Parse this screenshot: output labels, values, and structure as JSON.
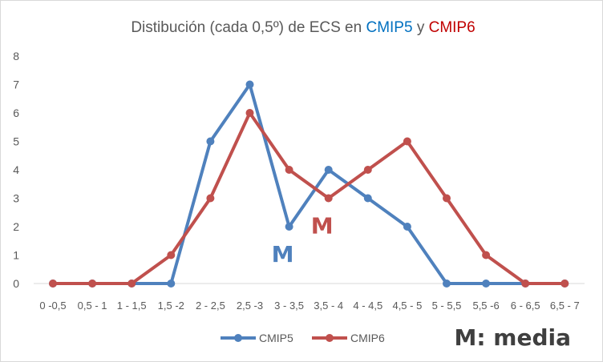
{
  "chart_data": {
    "type": "line",
    "title": {
      "prefix": "Distibución (cada 0,5º) de ECS en ",
      "s1": "CMIP5",
      "mid": " y ",
      "s2": "CMIP6"
    },
    "categories": [
      "0 -0,5",
      "0,5 - 1",
      "1 - 1,5",
      "1,5 -2",
      "2 - 2,5",
      "2,5 -3",
      "3 - 3,5",
      "3,5 - 4",
      "4 - 4,5",
      "4,5 - 5",
      "5 - 5,5",
      "5,5 -6",
      "6 - 6,5",
      "6,5 - 7"
    ],
    "series": [
      {
        "name": "CMIP5",
        "color": "#4f81bd",
        "values": [
          0,
          0,
          0,
          0,
          5,
          7,
          2,
          4,
          3,
          2,
          0,
          0,
          0,
          0
        ]
      },
      {
        "name": "CMIP6",
        "color": "#c0504d",
        "values": [
          0,
          0,
          0,
          1,
          3,
          6,
          4,
          3,
          4,
          5,
          3,
          1,
          0,
          0
        ]
      }
    ],
    "ylim": [
      0,
      8
    ],
    "yticks": [
      0,
      1,
      2,
      3,
      4,
      5,
      6,
      7,
      8
    ],
    "grid": false,
    "legend": "bottom",
    "annotations": [
      {
        "text": "M",
        "series": "CMIP5",
        "color": "#4f81bd",
        "near_category": "3 - 3,5",
        "value": 1.1
      },
      {
        "text": "M",
        "series": "CMIP6",
        "color": "#c0504d",
        "near_category": "3,5 - 4",
        "value": 2.1
      }
    ],
    "note": "M: media",
    "title_colors": {
      "s1": "#0070c0",
      "s2": "#c00000"
    }
  }
}
